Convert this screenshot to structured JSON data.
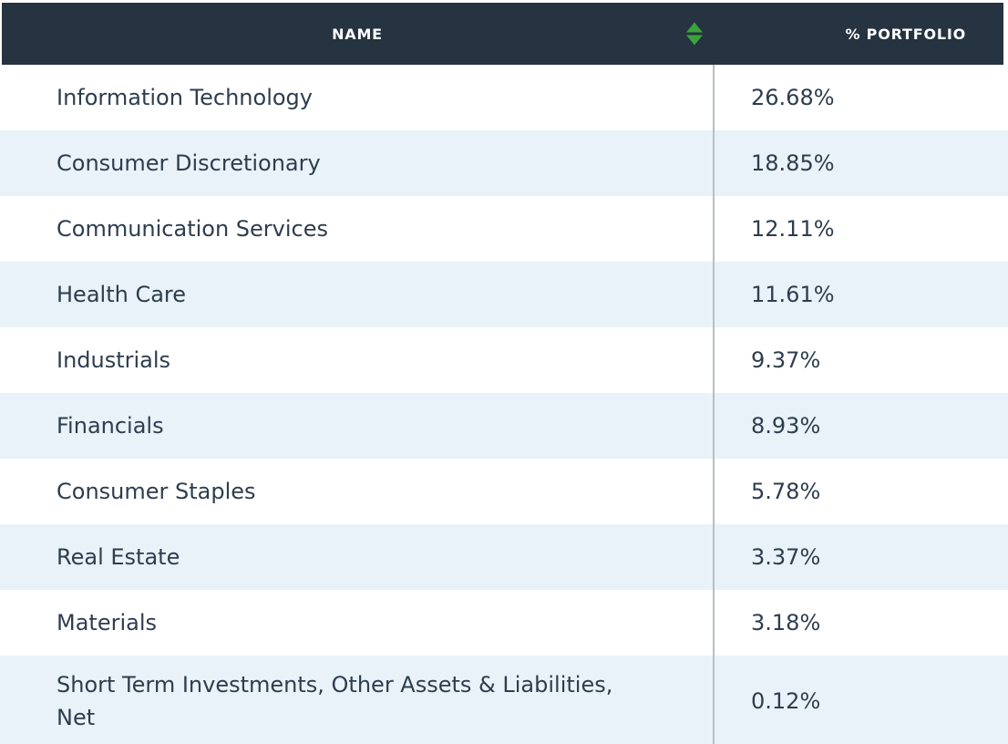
{
  "table": {
    "header": {
      "name_label": "NAME",
      "portfolio_label": "% PORTFOLIO",
      "sort_icon": "sort-asc-desc-arrows"
    },
    "rows": [
      {
        "name": "Information Technology",
        "portfolio": "26.68%"
      },
      {
        "name": "Consumer Discretionary",
        "portfolio": "18.85%"
      },
      {
        "name": "Communication Services",
        "portfolio": "12.11%"
      },
      {
        "name": "Health Care",
        "portfolio": "11.61%"
      },
      {
        "name": "Industrials",
        "portfolio": "9.37%"
      },
      {
        "name": "Financials",
        "portfolio": "8.93%"
      },
      {
        "name": "Consumer Staples",
        "portfolio": "5.78%"
      },
      {
        "name": "Real Estate",
        "portfolio": "3.37%"
      },
      {
        "name": "Materials",
        "portfolio": "3.18%"
      },
      {
        "name": "Short Term Investments, Other Assets & Liabilities, Net",
        "portfolio": "0.12%"
      }
    ],
    "colors": {
      "header_bg": "#263340",
      "header_text": "#ffffff",
      "row_bg": "#ffffff",
      "row_alt_bg": "#e8f2f8",
      "text": "#2e3d4e",
      "divider": "#b9bec1",
      "sort_arrow": "#3ba33b"
    }
  }
}
